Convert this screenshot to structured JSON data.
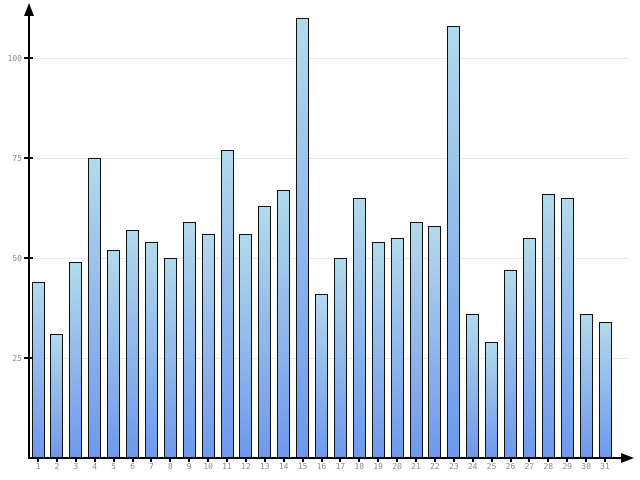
{
  "chart_data": {
    "type": "bar",
    "title": "",
    "xlabel": "",
    "ylabel": "",
    "categories": [
      "1",
      "2",
      "3",
      "4",
      "5",
      "6",
      "7",
      "8",
      "9",
      "10",
      "11",
      "12",
      "13",
      "14",
      "15",
      "16",
      "17",
      "18",
      "19",
      "20",
      "21",
      "22",
      "23",
      "24",
      "25",
      "26",
      "27",
      "28",
      "29",
      "30",
      "31"
    ],
    "values": [
      44,
      31,
      49,
      75,
      52,
      57,
      54,
      50,
      59,
      56,
      77,
      56,
      63,
      67,
      110,
      41,
      50,
      65,
      54,
      55,
      59,
      58,
      108,
      36,
      29,
      47,
      55,
      66,
      65,
      36,
      34
    ],
    "yticks": [
      25,
      50,
      75,
      100
    ],
    "ylim": [
      0,
      113
    ],
    "grid": true,
    "legend": false,
    "colors": {
      "bar_gradient_top": "#b3d9eb",
      "bar_gradient_bottom": "#6e98ec",
      "bar_border": "#111111",
      "gridline": "#e9e9e9",
      "axis": "#000000",
      "tick_label": "#8a8a8a",
      "background": "#ffffff"
    }
  }
}
